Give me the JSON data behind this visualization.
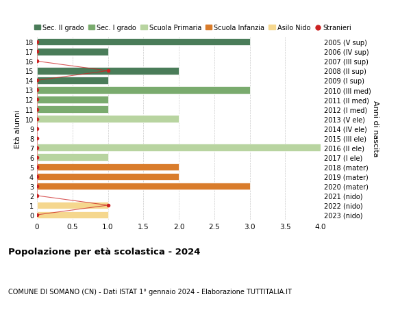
{
  "ages": [
    18,
    17,
    16,
    15,
    14,
    13,
    12,
    11,
    10,
    9,
    8,
    7,
    6,
    5,
    4,
    3,
    2,
    1,
    0
  ],
  "right_labels": [
    "2005 (V sup)",
    "2006 (IV sup)",
    "2007 (III sup)",
    "2008 (II sup)",
    "2009 (I sup)",
    "2010 (III med)",
    "2011 (II med)",
    "2012 (I med)",
    "2013 (V ele)",
    "2014 (IV ele)",
    "2015 (III ele)",
    "2016 (II ele)",
    "2017 (I ele)",
    "2018 (mater)",
    "2019 (mater)",
    "2020 (mater)",
    "2021 (nido)",
    "2022 (nido)",
    "2023 (nido)"
  ],
  "bar_values": [
    3.0,
    1.0,
    0.0,
    2.0,
    1.0,
    3.0,
    1.0,
    1.0,
    2.0,
    0.0,
    0.0,
    4.0,
    1.0,
    2.0,
    2.0,
    3.0,
    0.0,
    1.0,
    1.0
  ],
  "bar_colors": [
    "#4a7c59",
    "#4a7c59",
    "#4a7c59",
    "#4a7c59",
    "#4a7c59",
    "#7aab6e",
    "#7aab6e",
    "#7aab6e",
    "#b8d4a0",
    "#b8d4a0",
    "#b8d4a0",
    "#b8d4a0",
    "#b8d4a0",
    "#d97c2b",
    "#d97c2b",
    "#d97c2b",
    "#f5d78e",
    "#f5d78e",
    "#f5d78e"
  ],
  "stranieri_ages": [
    18,
    17,
    16,
    15,
    14,
    13,
    12,
    11,
    10,
    9,
    8,
    7,
    6,
    5,
    4,
    3,
    2,
    1,
    0
  ],
  "stranieri_values": [
    0,
    0,
    0,
    1,
    0,
    0,
    0,
    0,
    0,
    0,
    0,
    0,
    0,
    0,
    0,
    0,
    0,
    1,
    0
  ],
  "legend_labels": [
    "Sec. II grado",
    "Sec. I grado",
    "Scuola Primaria",
    "Scuola Infanzia",
    "Asilo Nido",
    "Stranieri"
  ],
  "legend_colors": [
    "#4a7c59",
    "#7aab6e",
    "#b8d4a0",
    "#d97c2b",
    "#f5d78e",
    "#cc2222"
  ],
  "title_bold": "Popolazione per età scolastica - 2024",
  "subtitle": "COMUNE DI SOMANO (CN) - Dati ISTAT 1° gennaio 2024 - Elaborazione TUTTITALIA.IT",
  "ylabel": "Età alunni",
  "right_ylabel": "Anni di nascita",
  "xlim": [
    0,
    4.0
  ],
  "xticks": [
    0,
    0.5,
    1.0,
    1.5,
    2.0,
    2.5,
    3.0,
    3.5,
    4.0
  ],
  "xtick_labels": [
    "0",
    "0.5",
    "1.0",
    "1.5",
    "2.0",
    "2.5",
    "3.0",
    "3.5",
    "4.0"
  ],
  "background_color": "#ffffff",
  "grid_color": "#cccccc",
  "bar_height": 0.75
}
